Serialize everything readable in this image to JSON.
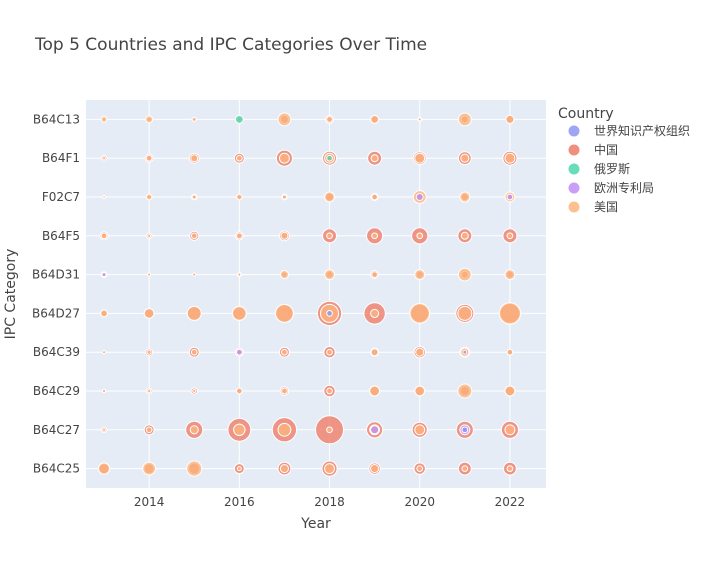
{
  "chart_data": {
    "type": "scatter",
    "subtype": "bubble",
    "title": "Top 5 Countries and IPC Categories Over Time",
    "xlabel": "Year",
    "ylabel": "IPC Category",
    "x_ticks": [
      2014,
      2016,
      2018,
      2020,
      2022
    ],
    "xlim": [
      2012.6,
      2022.8
    ],
    "categories": [
      "B64C25",
      "B64C27",
      "B64C29",
      "B64C39",
      "B64D27",
      "B64D31",
      "B64F5",
      "F02C7",
      "B64F1",
      "B64C13"
    ],
    "legend": {
      "title": "Country",
      "position": "right",
      "entries": [
        {
          "name": "世界知识产权组织",
          "color": "#8c96f5"
        },
        {
          "name": "中国",
          "color": "#ef7b67"
        },
        {
          "name": "俄罗斯",
          "color": "#4fd6ad"
        },
        {
          "name": "欧洲专利局",
          "color": "#c08df5"
        },
        {
          "name": "美国",
          "color": "#fdb57c"
        }
      ]
    },
    "series": [
      {
        "name": "中国",
        "color": "#ef7b67",
        "points": [
          [
            "B64C25",
            2013,
            3
          ],
          [
            "B64C25",
            2014,
            3
          ],
          [
            "B64C25",
            2015,
            4
          ],
          [
            "B64C25",
            2016,
            3
          ],
          [
            "B64C25",
            2017,
            5
          ],
          [
            "B64C25",
            2018,
            7
          ],
          [
            "B64C25",
            2019,
            4
          ],
          [
            "B64C25",
            2020,
            4
          ],
          [
            "B64C25",
            2021,
            5
          ],
          [
            "B64C25",
            2022,
            5
          ],
          [
            "B64C27",
            2013,
            1
          ],
          [
            "B64C27",
            2014,
            3
          ],
          [
            "B64C27",
            2015,
            9
          ],
          [
            "B64C27",
            2016,
            16
          ],
          [
            "B64C27",
            2017,
            18
          ],
          [
            "B64C27",
            2018,
            24
          ],
          [
            "B64C27",
            2019,
            8
          ],
          [
            "B64C27",
            2020,
            7
          ],
          [
            "B64C27",
            2021,
            9
          ],
          [
            "B64C27",
            2022,
            9
          ],
          [
            "B64C29",
            2013,
            0.3
          ],
          [
            "B64C29",
            2014,
            1
          ],
          [
            "B64C29",
            2015,
            1.2
          ],
          [
            "B64C29",
            2016,
            1
          ],
          [
            "B64C29",
            2017,
            2.2
          ],
          [
            "B64C29",
            2018,
            4
          ],
          [
            "B64C29",
            2019,
            3
          ],
          [
            "B64C29",
            2020,
            2.5
          ],
          [
            "B64C29",
            2021,
            3
          ],
          [
            "B64C29",
            2022,
            3
          ],
          [
            "B64C39",
            2013,
            0.3
          ],
          [
            "B64C39",
            2014,
            1.5
          ],
          [
            "B64C39",
            2015,
            3
          ],
          [
            "B64C39",
            2016,
            2
          ],
          [
            "B64C39",
            2017,
            3
          ],
          [
            "B64C39",
            2018,
            4
          ],
          [
            "B64C39",
            2019,
            2
          ],
          [
            "B64C39",
            2020,
            4
          ],
          [
            "B64C39",
            2021,
            3
          ],
          [
            "B64C39",
            2022,
            1
          ],
          [
            "B64D27",
            2013,
            1
          ],
          [
            "B64D27",
            2014,
            2.5
          ],
          [
            "B64D27",
            2015,
            6
          ],
          [
            "B64D27",
            2016,
            5
          ],
          [
            "B64D27",
            2017,
            9
          ],
          [
            "B64D27",
            2018,
            18
          ],
          [
            "B64D27",
            2019,
            14
          ],
          [
            "B64D27",
            2020,
            10
          ],
          [
            "B64D27",
            2021,
            10
          ],
          [
            "B64D27",
            2022,
            12
          ],
          [
            "B64D31",
            2013,
            1
          ],
          [
            "B64D31",
            2014,
            0.3
          ],
          [
            "B64D31",
            2015,
            0.3
          ],
          [
            "B64D31",
            2016,
            0.5
          ],
          [
            "B64D31",
            2017,
            0.8
          ],
          [
            "B64D31",
            2018,
            1.5
          ],
          [
            "B64D31",
            2019,
            2
          ],
          [
            "B64D31",
            2020,
            1.5
          ],
          [
            "B64D31",
            2021,
            1.5
          ],
          [
            "B64D31",
            2022,
            1.5
          ],
          [
            "B64F5",
            2013,
            2
          ],
          [
            "B64F5",
            2014,
            1
          ],
          [
            "B64F5",
            2015,
            2.5
          ],
          [
            "B64F5",
            2016,
            2
          ],
          [
            "B64F5",
            2017,
            3
          ],
          [
            "B64F5",
            2018,
            6
          ],
          [
            "B64F5",
            2019,
            8
          ],
          [
            "B64F5",
            2020,
            8
          ],
          [
            "B64F5",
            2021,
            6
          ],
          [
            "B64F5",
            2022,
            6
          ],
          [
            "F02C7",
            2013,
            0.3
          ],
          [
            "F02C7",
            2014,
            0.5
          ],
          [
            "F02C7",
            2015,
            1
          ],
          [
            "F02C7",
            2016,
            0.5
          ],
          [
            "F02C7",
            2017,
            1
          ],
          [
            "F02C7",
            2018,
            2
          ],
          [
            "F02C7",
            2019,
            1.5
          ],
          [
            "F02C7",
            2020,
            3
          ],
          [
            "F02C7",
            2021,
            1.5
          ],
          [
            "F02C7",
            2022,
            1.5
          ],
          [
            "B64F1",
            2013,
            1
          ],
          [
            "B64F1",
            2014,
            2
          ],
          [
            "B64F1",
            2015,
            3
          ],
          [
            "B64F1",
            2016,
            3
          ],
          [
            "B64F1",
            2017,
            8
          ],
          [
            "B64F1",
            2018,
            6
          ],
          [
            "B64F1",
            2019,
            6
          ],
          [
            "B64F1",
            2020,
            5
          ],
          [
            "B64F1",
            2021,
            5
          ],
          [
            "B64F1",
            2022,
            6
          ],
          [
            "B64C13",
            2013,
            0.3
          ],
          [
            "B64C13",
            2014,
            0.5
          ],
          [
            "B64C13",
            2015,
            0.3
          ],
          [
            "B64C13",
            2016,
            0.5
          ],
          [
            "B64C13",
            2017,
            2
          ],
          [
            "B64C13",
            2018,
            2
          ],
          [
            "B64C13",
            2019,
            1.5
          ],
          [
            "B64C13",
            2020,
            0.5
          ],
          [
            "B64C13",
            2021,
            1.5
          ],
          [
            "B64C13",
            2022,
            2
          ]
        ]
      },
      {
        "name": "美国",
        "color": "#fdb57c",
        "points": [
          [
            "B64C25",
            2013,
            4
          ],
          [
            "B64C25",
            2014,
            5
          ],
          [
            "B64C25",
            2015,
            7
          ],
          [
            "B64C25",
            2016,
            0.5
          ],
          [
            "B64C25",
            2017,
            2
          ],
          [
            "B64C25",
            2018,
            3
          ],
          [
            "B64C25",
            2019,
            2
          ],
          [
            "B64C25",
            2020,
            1
          ],
          [
            "B64C25",
            2021,
            1
          ],
          [
            "B64C25",
            2022,
            1
          ],
          [
            "B64C27",
            2013,
            0.3
          ],
          [
            "B64C27",
            2014,
            1
          ],
          [
            "B64C27",
            2015,
            2
          ],
          [
            "B64C27",
            2016,
            4
          ],
          [
            "B64C27",
            2017,
            5
          ],
          [
            "B64C27",
            2018,
            1
          ],
          [
            "B64C27",
            2019,
            3
          ],
          [
            "B64C27",
            2020,
            3
          ],
          [
            "B64C27",
            2021,
            2
          ],
          [
            "B64C27",
            2022,
            3
          ],
          [
            "B64C29",
            2013,
            0.3
          ],
          [
            "B64C29",
            2014,
            0.3
          ],
          [
            "B64C29",
            2015,
            0.3
          ],
          [
            "B64C29",
            2016,
            1
          ],
          [
            "B64C29",
            2017,
            1
          ],
          [
            "B64C29",
            2018,
            1
          ],
          [
            "B64C29",
            2019,
            3
          ],
          [
            "B64C29",
            2020,
            3
          ],
          [
            "B64C29",
            2021,
            6
          ],
          [
            "B64C29",
            2022,
            3
          ],
          [
            "B64C39",
            2013,
            0.3
          ],
          [
            "B64C39",
            2014,
            0.5
          ],
          [
            "B64C39",
            2015,
            1
          ],
          [
            "B64C39",
            2016,
            1
          ],
          [
            "B64C39",
            2017,
            1
          ],
          [
            "B64C39",
            2018,
            1
          ],
          [
            "B64C39",
            2019,
            1.5
          ],
          [
            "B64C39",
            2020,
            2
          ],
          [
            "B64C39",
            2021,
            2
          ],
          [
            "B64C39",
            2022,
            1
          ],
          [
            "B64D27",
            2013,
            1.5
          ],
          [
            "B64D27",
            2014,
            3
          ],
          [
            "B64D27",
            2015,
            6
          ],
          [
            "B64D27",
            2016,
            6
          ],
          [
            "B64D27",
            2017,
            10
          ],
          [
            "B64D27",
            2018,
            10
          ],
          [
            "B64D27",
            2019,
            2
          ],
          [
            "B64D27",
            2020,
            12
          ],
          [
            "B64D27",
            2021,
            6
          ],
          [
            "B64D27",
            2022,
            14
          ],
          [
            "B64D31",
            2013,
            0.5
          ],
          [
            "B64D31",
            2014,
            0.3
          ],
          [
            "B64D31",
            2015,
            0.3
          ],
          [
            "B64D31",
            2016,
            0.3
          ],
          [
            "B64D31",
            2017,
            2
          ],
          [
            "B64D31",
            2018,
            3
          ],
          [
            "B64D31",
            2019,
            1
          ],
          [
            "B64D31",
            2020,
            3
          ],
          [
            "B64D31",
            2021,
            5
          ],
          [
            "B64D31",
            2022,
            3
          ],
          [
            "B64F5",
            2013,
            1
          ],
          [
            "B64F5",
            2014,
            0.3
          ],
          [
            "B64F5",
            2015,
            1
          ],
          [
            "B64F5",
            2016,
            1
          ],
          [
            "B64F5",
            2017,
            1.5
          ],
          [
            "B64F5",
            2018,
            1
          ],
          [
            "B64F5",
            2019,
            1
          ],
          [
            "B64F5",
            2020,
            1
          ],
          [
            "B64F5",
            2021,
            1.5
          ],
          [
            "B64F5",
            2022,
            1
          ],
          [
            "F02C7",
            2013,
            0.2
          ],
          [
            "F02C7",
            2014,
            1
          ],
          [
            "F02C7",
            2015,
            0.5
          ],
          [
            "F02C7",
            2016,
            1
          ],
          [
            "F02C7",
            2017,
            0.5
          ],
          [
            "F02C7",
            2018,
            3
          ],
          [
            "F02C7",
            2019,
            1
          ],
          [
            "F02C7",
            2020,
            5
          ],
          [
            "F02C7",
            2021,
            3
          ],
          [
            "F02C7",
            2022,
            3
          ],
          [
            "B64F1",
            2013,
            0.3
          ],
          [
            "B64F1",
            2014,
            1
          ],
          [
            "B64F1",
            2015,
            1.5
          ],
          [
            "B64F1",
            2016,
            1
          ],
          [
            "B64F1",
            2017,
            3
          ],
          [
            "B64F1",
            2018,
            3
          ],
          [
            "B64F1",
            2019,
            1.5
          ],
          [
            "B64F1",
            2020,
            3
          ],
          [
            "B64F1",
            2021,
            2
          ],
          [
            "B64F1",
            2022,
            3
          ],
          [
            "B64C13",
            2013,
            1
          ],
          [
            "B64C13",
            2014,
            1.5
          ],
          [
            "B64C13",
            2015,
            0.5
          ],
          [
            "B64C13",
            2016,
            1
          ],
          [
            "B64C13",
            2017,
            5
          ],
          [
            "B64C13",
            2018,
            1
          ],
          [
            "B64C13",
            2019,
            2
          ],
          [
            "B64C13",
            2020,
            0.3
          ],
          [
            "B64C13",
            2021,
            5
          ],
          [
            "B64C13",
            2022,
            2
          ]
        ]
      },
      {
        "name": "欧洲专利局",
        "color": "#c08df5",
        "points": [
          [
            "B64C27",
            2019,
            2
          ],
          [
            "B64C27",
            2021,
            3
          ],
          [
            "B64C39",
            2016,
            1
          ],
          [
            "B64D31",
            2013,
            0.5
          ],
          [
            "F02C7",
            2020,
            1.5
          ],
          [
            "F02C7",
            2022,
            1
          ],
          [
            "B64C39",
            2021,
            0.5
          ]
        ]
      },
      {
        "name": "俄罗斯",
        "color": "#4fd6ad",
        "points": [
          [
            "B64F1",
            2018,
            1
          ],
          [
            "B64C13",
            2016,
            2
          ]
        ]
      },
      {
        "name": "世界知识产权组织",
        "color": "#8c96f5",
        "points": [
          [
            "B64C27",
            2021,
            1
          ],
          [
            "B64D27",
            2018,
            1
          ]
        ]
      }
    ]
  }
}
